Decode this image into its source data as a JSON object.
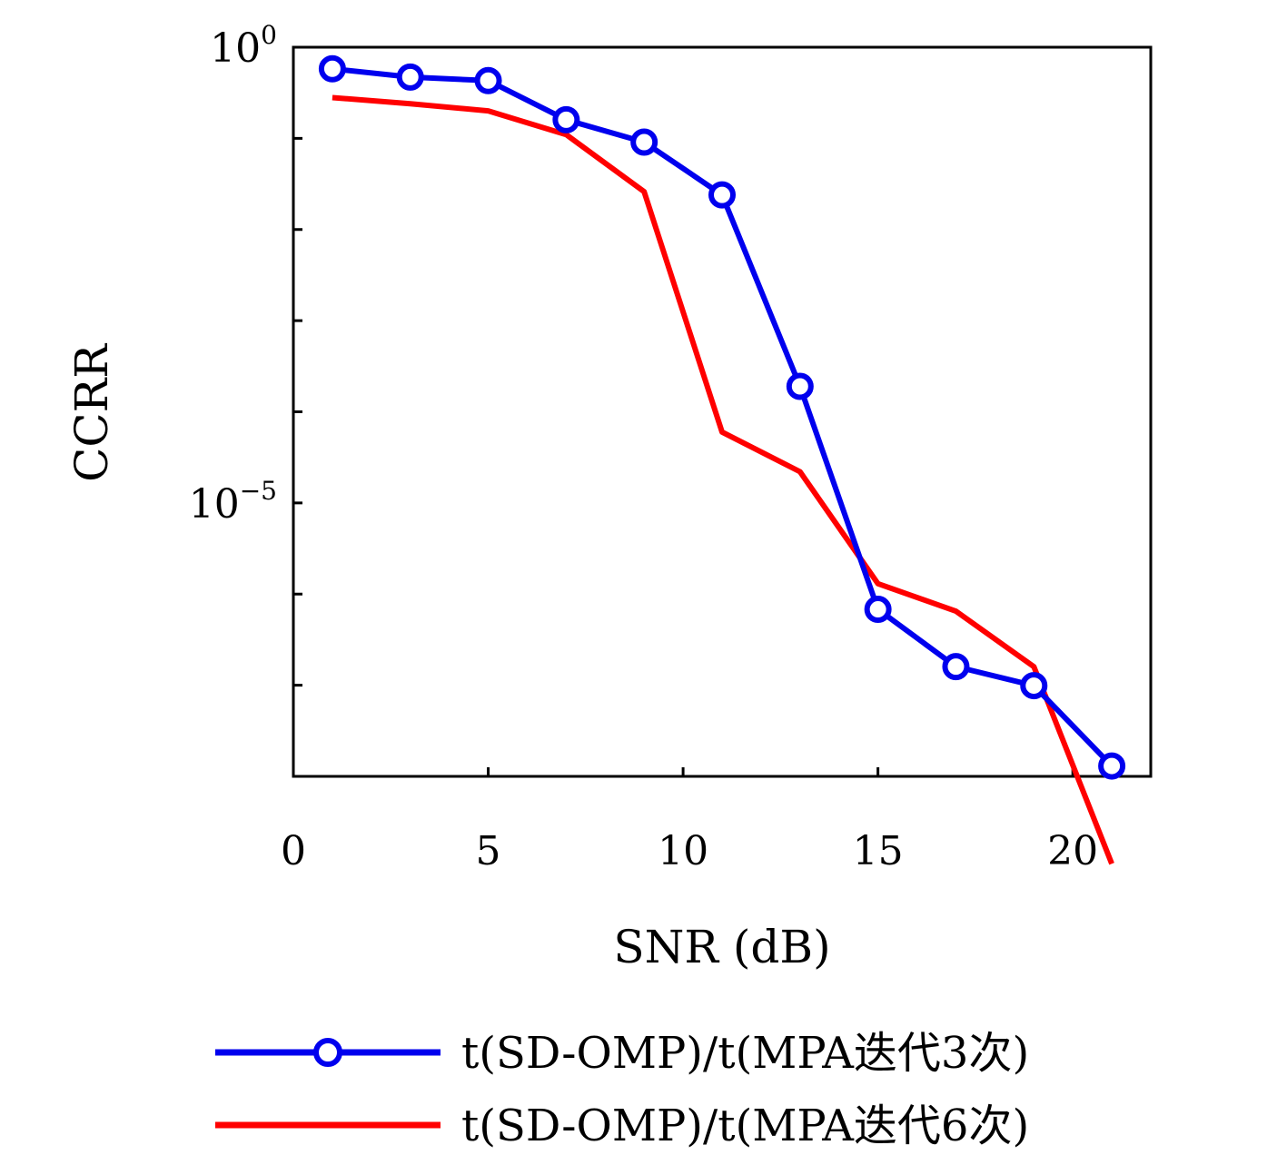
{
  "chart_data": {
    "type": "line",
    "xlabel": "SNR (dB)",
    "ylabel": "CCRR",
    "xlim": [
      0,
      22
    ],
    "ylim_exponent": [
      -8,
      0
    ],
    "yscale": "log",
    "x_ticks": [
      "0",
      "5",
      "10",
      "15",
      "20"
    ],
    "x_tick_values": [
      0,
      5,
      10,
      15,
      20
    ],
    "y_ticks": [
      {
        "value": 0,
        "base": "10",
        "exp": "0"
      },
      {
        "value": -5,
        "base": "10",
        "exp": "−5"
      }
    ],
    "x": [
      1,
      3,
      5,
      7,
      9,
      11,
      13,
      15,
      17,
      19,
      21
    ],
    "series": [
      {
        "name": "t(SD-OMP)/t(MPA迭代3次)",
        "color": "#0000ee",
        "marker": "circle",
        "values": [
          0.58,
          0.47,
          0.43,
          0.16,
          0.091,
          0.024,
          0.00019,
          6.8e-07,
          1.6e-07,
          9.9e-08,
          1.3e-08
        ]
      },
      {
        "name": "t(SD-OMP)/t(MPA迭代6次)",
        "color": "#ff0000",
        "marker": "none",
        "values": [
          0.28,
          0.24,
          0.2,
          0.11,
          0.026,
          6e-05,
          2.2e-05,
          1.3e-06,
          6.5e-07,
          1.6e-07,
          1.1e-09
        ]
      }
    ],
    "legend_position": "bottom",
    "grid": false
  }
}
